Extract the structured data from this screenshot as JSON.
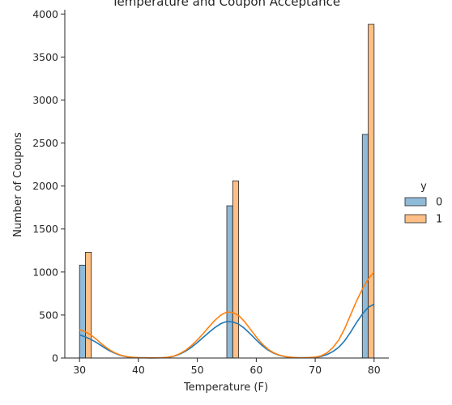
{
  "chart_data": {
    "type": "bar",
    "title": "Temperature and Coupon Acceptance",
    "xlabel": "Temperature (F)",
    "ylabel": "Number of Coupons",
    "xlim": [
      27.5,
      82.5
    ],
    "ylim": [
      0,
      4050
    ],
    "xticks": [
      30,
      40,
      50,
      60,
      70,
      80
    ],
    "yticks": [
      0,
      500,
      1000,
      1500,
      2000,
      2500,
      3000,
      3500,
      4000
    ],
    "bar_width": 1,
    "legend": {
      "title": "y",
      "position": "right",
      "entries": [
        "0",
        "1"
      ]
    },
    "series": [
      {
        "name": "0",
        "color": "#1f77b4",
        "bars": [
          {
            "x": 30,
            "value": 1080
          },
          {
            "x": 55,
            "value": 1770
          },
          {
            "x": 78,
            "value": 2600
          }
        ],
        "kde": [
          [
            30,
            270
          ],
          [
            31,
            245
          ],
          [
            32,
            215
          ],
          [
            33,
            175
          ],
          [
            34,
            130
          ],
          [
            35,
            88
          ],
          [
            36,
            55
          ],
          [
            37,
            30
          ],
          [
            38,
            15
          ],
          [
            39,
            7
          ],
          [
            40,
            4
          ],
          [
            42,
            2
          ],
          [
            44,
            3
          ],
          [
            45,
            8
          ],
          [
            46,
            20
          ],
          [
            47,
            45
          ],
          [
            48,
            80
          ],
          [
            49,
            125
          ],
          [
            50,
            180
          ],
          [
            51,
            240
          ],
          [
            52,
            300
          ],
          [
            53,
            355
          ],
          [
            54,
            400
          ],
          [
            55,
            425
          ],
          [
            56,
            420
          ],
          [
            57,
            395
          ],
          [
            58,
            345
          ],
          [
            59,
            280
          ],
          [
            60,
            210
          ],
          [
            61,
            145
          ],
          [
            62,
            92
          ],
          [
            63,
            55
          ],
          [
            64,
            30
          ],
          [
            65,
            15
          ],
          [
            66,
            8
          ],
          [
            67,
            4
          ],
          [
            68,
            3
          ],
          [
            69,
            4
          ],
          [
            70,
            8
          ],
          [
            71,
            18
          ],
          [
            72,
            40
          ],
          [
            73,
            75
          ],
          [
            74,
            125
          ],
          [
            75,
            200
          ],
          [
            76,
            300
          ],
          [
            77,
            410
          ],
          [
            78,
            510
          ],
          [
            79,
            590
          ],
          [
            80,
            625
          ]
        ]
      },
      {
        "name": "1",
        "color": "#ff7f0e",
        "bars": [
          {
            "x": 31,
            "value": 1230
          },
          {
            "x": 56,
            "value": 2060
          },
          {
            "x": 79,
            "value": 3880
          }
        ],
        "kde": [
          [
            30,
            330
          ],
          [
            31,
            305
          ],
          [
            32,
            265
          ],
          [
            33,
            210
          ],
          [
            34,
            150
          ],
          [
            35,
            100
          ],
          [
            36,
            60
          ],
          [
            37,
            33
          ],
          [
            38,
            17
          ],
          [
            39,
            8
          ],
          [
            40,
            4
          ],
          [
            42,
            2
          ],
          [
            44,
            3
          ],
          [
            45,
            9
          ],
          [
            46,
            22
          ],
          [
            47,
            50
          ],
          [
            48,
            90
          ],
          [
            49,
            145
          ],
          [
            50,
            210
          ],
          [
            51,
            285
          ],
          [
            52,
            365
          ],
          [
            53,
            440
          ],
          [
            54,
            500
          ],
          [
            55,
            535
          ],
          [
            56,
            530
          ],
          [
            57,
            495
          ],
          [
            58,
            425
          ],
          [
            59,
            335
          ],
          [
            60,
            245
          ],
          [
            61,
            165
          ],
          [
            62,
            102
          ],
          [
            63,
            60
          ],
          [
            64,
            32
          ],
          [
            65,
            16
          ],
          [
            66,
            8
          ],
          [
            67,
            4
          ],
          [
            68,
            3
          ],
          [
            69,
            5
          ],
          [
            70,
            10
          ],
          [
            71,
            25
          ],
          [
            72,
            60
          ],
          [
            73,
            120
          ],
          [
            74,
            210
          ],
          [
            75,
            340
          ],
          [
            76,
            500
          ],
          [
            77,
            660
          ],
          [
            78,
            800
          ],
          [
            79,
            920
          ],
          [
            80,
            1000
          ]
        ]
      }
    ]
  }
}
